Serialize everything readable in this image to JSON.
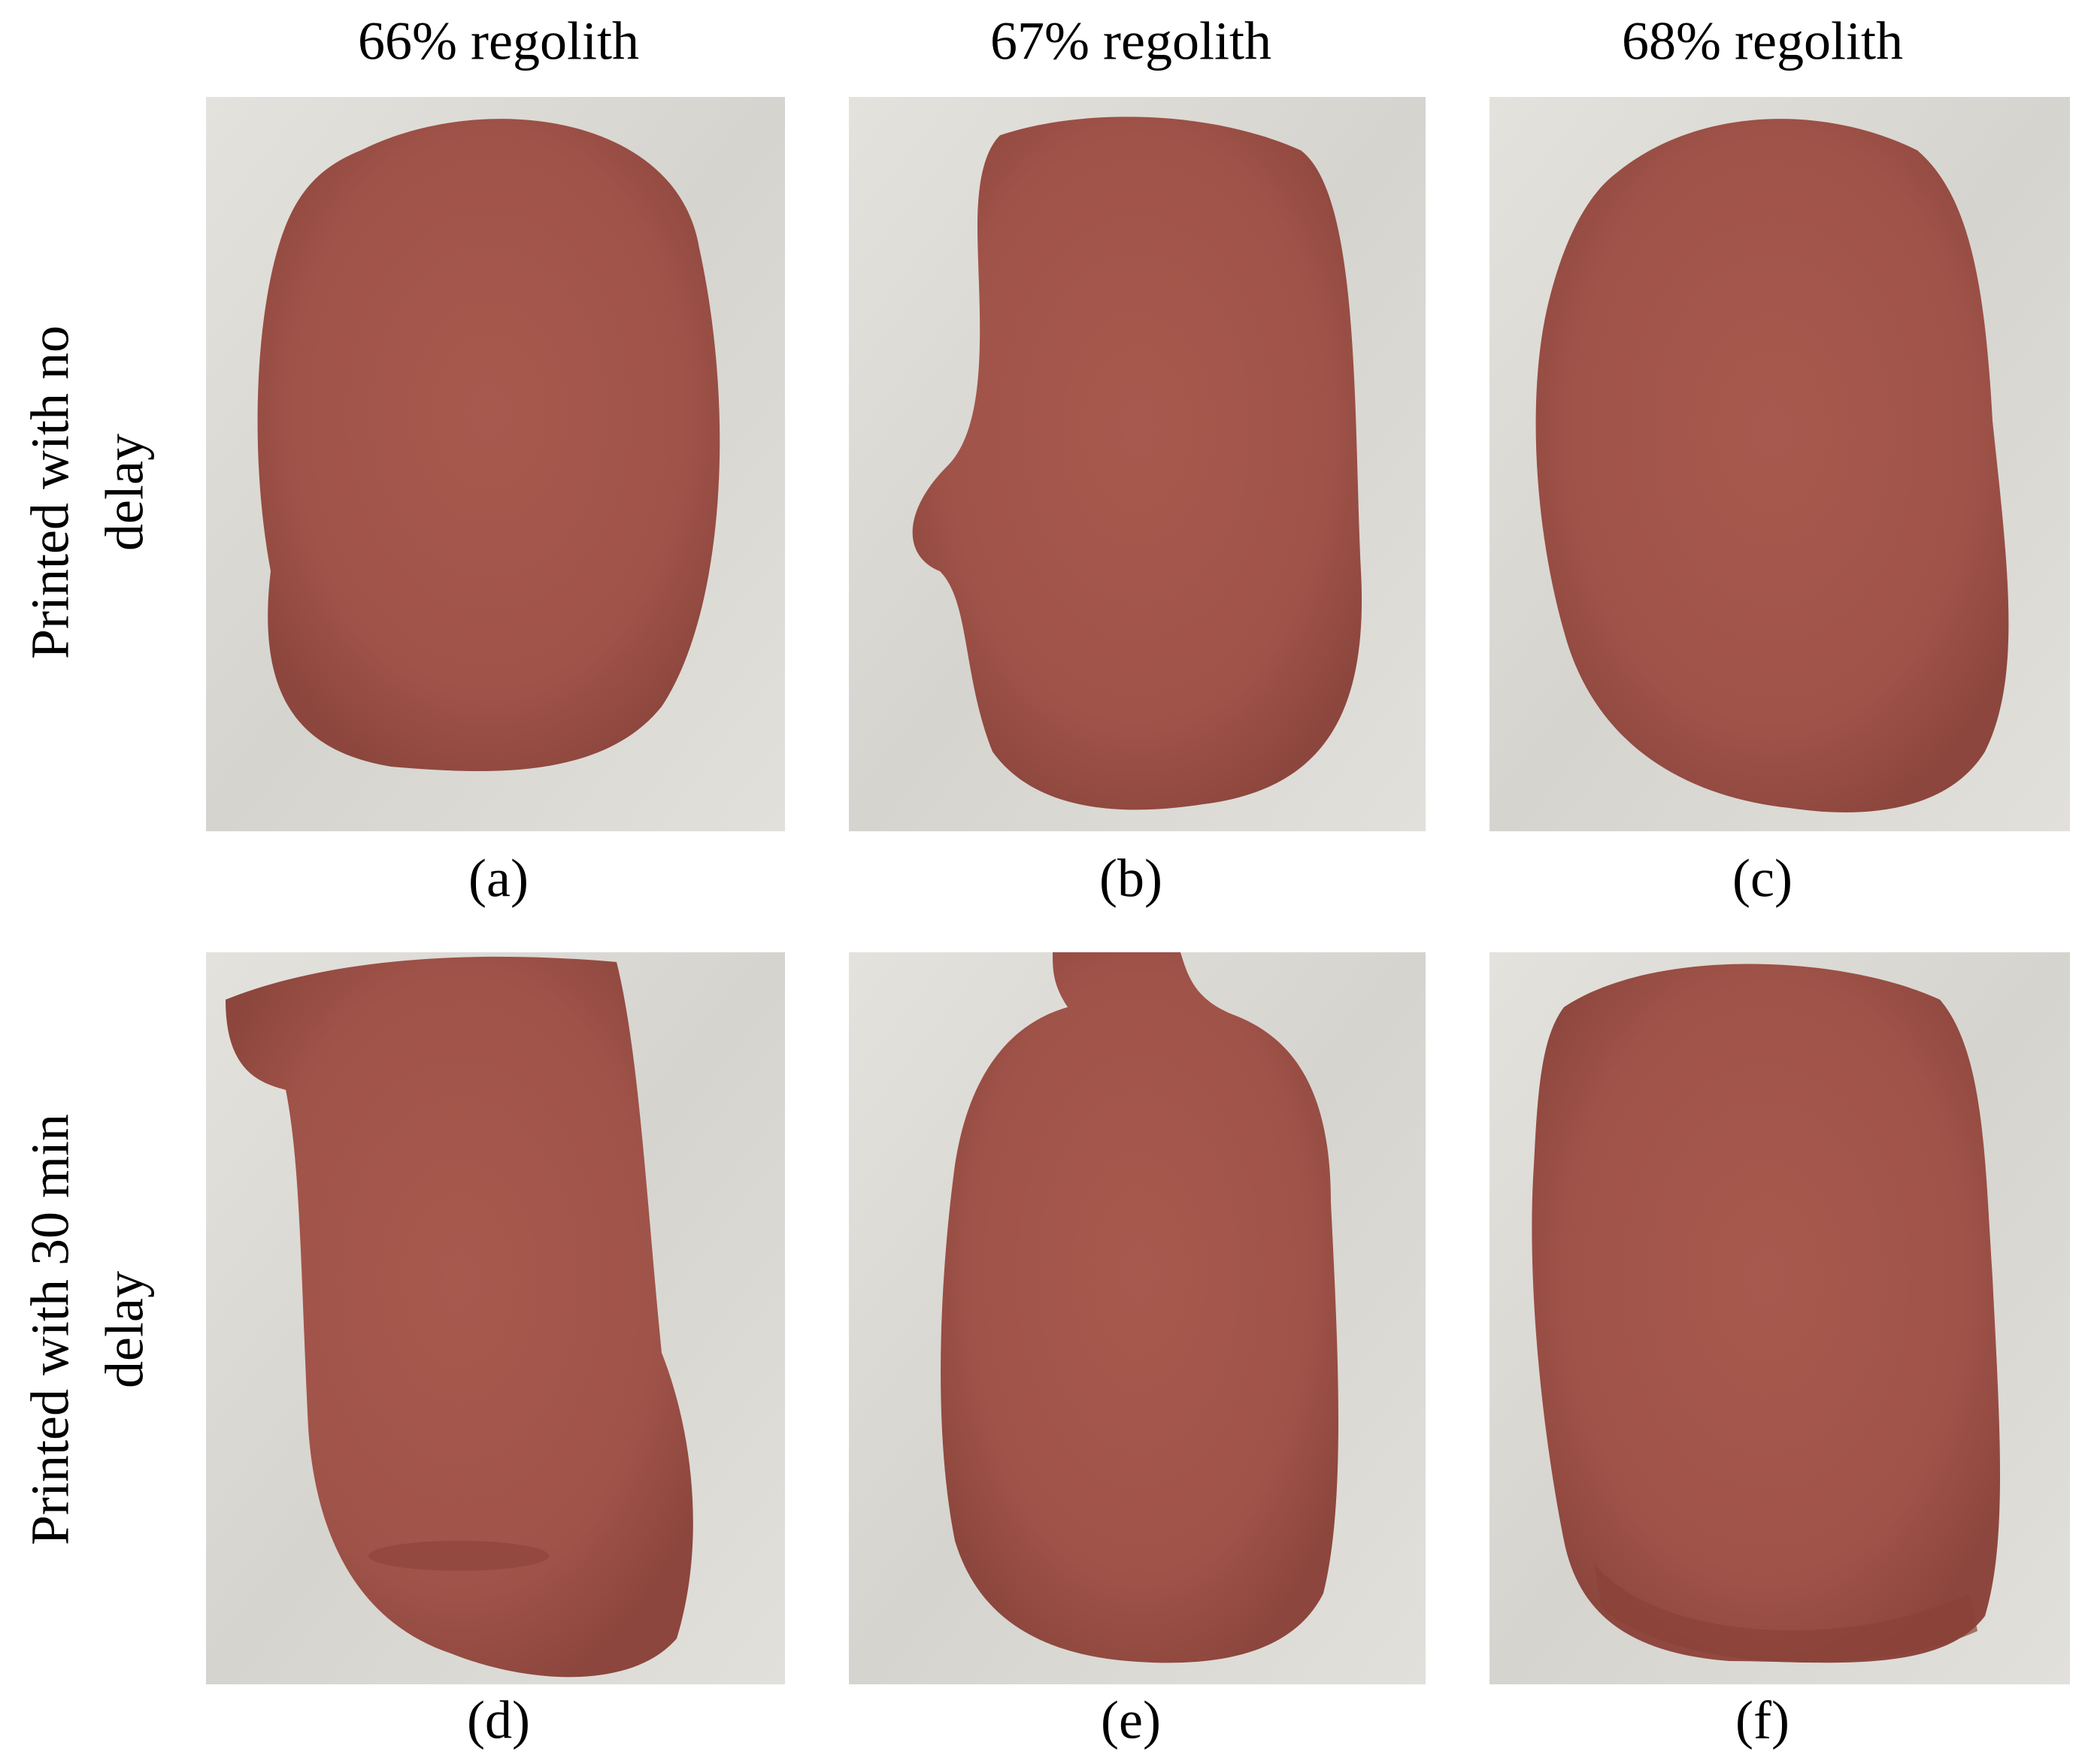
{
  "columns": [
    "66% regolith",
    "67% regolith",
    "68% regolith"
  ],
  "rows": [
    [
      "Printed with no",
      "delay"
    ],
    [
      "Printed with 30 min",
      "delay"
    ]
  ],
  "panels": [
    "(a)",
    "(b)",
    "(c)",
    "(d)",
    "(e)",
    "(f)"
  ]
}
